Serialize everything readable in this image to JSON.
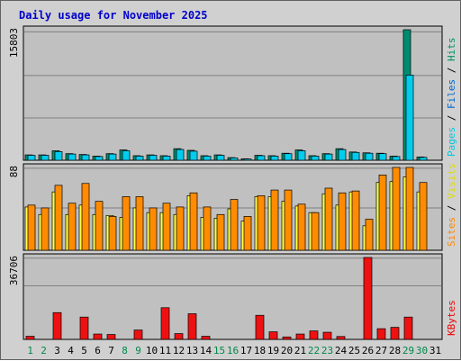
{
  "chart_data": {
    "type": "bar",
    "title": "Daily usage for November 2025",
    "days": [
      "1",
      "2",
      "3",
      "4",
      "5",
      "6",
      "7",
      "8",
      "9",
      "10",
      "11",
      "12",
      "13",
      "14",
      "15",
      "16",
      "17",
      "18",
      "19",
      "20",
      "21",
      "22",
      "23",
      "24",
      "25",
      "26",
      "27",
      "28",
      "29",
      "30",
      "31"
    ],
    "weekend_days": [
      1,
      2,
      8,
      9,
      15,
      16,
      22,
      23,
      29,
      30
    ],
    "panels": [
      {
        "id": "hits-files-pages",
        "ymax": 15803,
        "ymax_label": "15803",
        "legend": [
          {
            "text": "Pages",
            "color": "#00c8e0"
          },
          {
            "text": " / ",
            "color": "#000000"
          },
          {
            "text": "Files",
            "color": "#0066cc"
          },
          {
            "text": " / ",
            "color": "#000000"
          },
          {
            "text": "Hits",
            "color": "#009060"
          }
        ],
        "series": [
          {
            "name": "Hits",
            "color": "#008c70",
            "values": [
              650,
              650,
              1150,
              800,
              700,
              500,
              800,
              1250,
              550,
              650,
              550,
              1400,
              1200,
              550,
              650,
              320,
              180,
              600,
              550,
              850,
              1250,
              550,
              800,
              1400,
              1000,
              900,
              850,
              500,
              15803,
              400,
              0
            ]
          },
          {
            "name": "Pages",
            "color": "#00ccee",
            "values": [
              600,
              600,
              1050,
              750,
              650,
              450,
              750,
              1150,
              500,
              600,
              500,
              1300,
              1100,
              500,
              600,
              280,
              150,
              550,
              500,
              800,
              1150,
              500,
              750,
              1300,
              950,
              850,
              800,
              450,
              10300,
              350,
              0
            ]
          }
        ]
      },
      {
        "id": "visits-sites",
        "ymax": 88,
        "ymax_label": "88",
        "legend": [
          {
            "text": "Sites",
            "color": "#ff8800"
          },
          {
            "text": " / ",
            "color": "#000000"
          },
          {
            "text": "Visits",
            "color": "#dddd00"
          }
        ],
        "series": [
          {
            "name": "Visits",
            "color": "#ffff44",
            "values": [
              46,
              38,
              62,
              38,
              48,
              38,
              37,
              35,
              45,
              40,
              40,
              38,
              58,
              35,
              34,
              44,
              31,
              57,
              57,
              52,
              47,
              40,
              60,
              48,
              62,
              26,
              72,
              73,
              78,
              62,
              0
            ]
          },
          {
            "name": "Sites",
            "color": "#ff8c00",
            "values": [
              48,
              45,
              69,
              50,
              71,
              52,
              36,
              57,
              57,
              45,
              50,
              46,
              61,
              46,
              38,
              54,
              36,
              58,
              64,
              64,
              49,
              40,
              66,
              61,
              63,
              33,
              80,
              88,
              88,
              72,
              0
            ]
          }
        ]
      },
      {
        "id": "kbytes",
        "ymax": 36706,
        "ymax_label": "36706",
        "legend": [
          {
            "text": "KBytes",
            "color": "#ee0000"
          }
        ],
        "series": [
          {
            "name": "KBytes",
            "color": "#ee1111",
            "values": [
              1400,
              0,
              12000,
              0,
              10000,
              2400,
              2200,
              0,
              4200,
              0,
              14200,
              2600,
              11500,
              1400,
              0,
              0,
              0,
              10800,
              3400,
              1100,
              2400,
              3800,
              3200,
              1300,
              0,
              36706,
              4800,
              5400,
              10000,
              0,
              0
            ]
          }
        ]
      }
    ]
  }
}
